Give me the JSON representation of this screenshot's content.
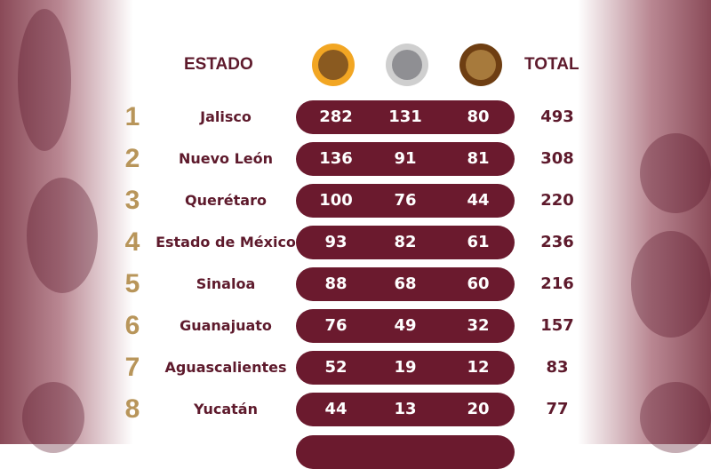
{
  "header": {
    "state_label": "ESTADO",
    "total_label": "TOTAL"
  },
  "medals": [
    {
      "name": "gold-medal",
      "ring": "#f2a623",
      "center": "#8a5a20"
    },
    {
      "name": "silver-medal",
      "ring": "#cfcfcf",
      "center": "#8f8f93"
    },
    {
      "name": "bronze-medal",
      "ring": "#6e3e12",
      "center": "#a77a3c"
    }
  ],
  "colors": {
    "maroon": "#6b1a2e",
    "gold_rank": "#b8955a"
  },
  "rows": [
    {
      "rank": "1",
      "state": "Jalisco",
      "gold": "282",
      "silver": "131",
      "bronze": "80",
      "total": "493"
    },
    {
      "rank": "2",
      "state": "Nuevo León",
      "gold": "136",
      "silver": "91",
      "bronze": "81",
      "total": "308"
    },
    {
      "rank": "3",
      "state": "Querétaro",
      "gold": "100",
      "silver": "76",
      "bronze": "44",
      "total": "220"
    },
    {
      "rank": "4",
      "state": "Estado de México",
      "gold": "93",
      "silver": "82",
      "bronze": "61",
      "total": "236"
    },
    {
      "rank": "5",
      "state": "Sinaloa",
      "gold": "88",
      "silver": "68",
      "bronze": "60",
      "total": "216"
    },
    {
      "rank": "6",
      "state": "Guanajuato",
      "gold": "76",
      "silver": "49",
      "bronze": "32",
      "total": "157"
    },
    {
      "rank": "7",
      "state": "Aguascalientes",
      "gold": "52",
      "silver": "19",
      "bronze": "12",
      "total": "83"
    },
    {
      "rank": "8",
      "state": "Yucatán",
      "gold": "44",
      "silver": "13",
      "bronze": "20",
      "total": "77"
    }
  ]
}
